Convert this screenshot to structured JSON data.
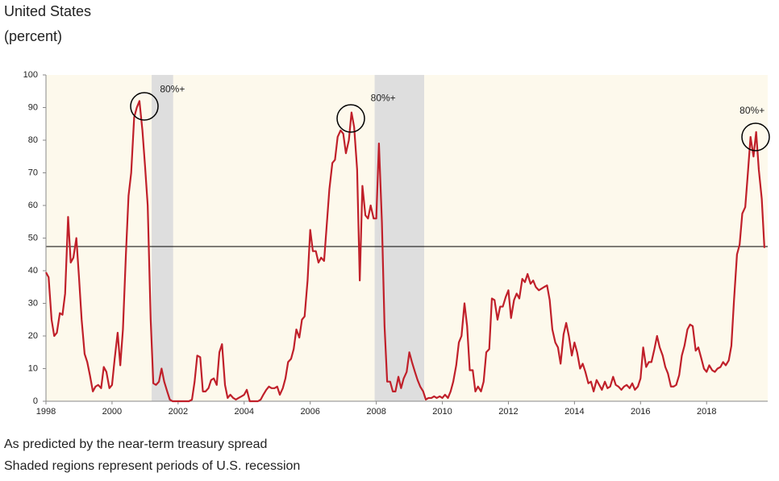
{
  "chart_data": {
    "type": "line",
    "title": "United States",
    "subtitle": "(percent)",
    "notes": [
      "As predicted by the near-term treasury spread",
      "Shaded regions represent periods of U.S. recession"
    ],
    "color": "#c0202a",
    "background": "#fdf9ec",
    "recession_color": "#dedede",
    "recessions": [
      [
        2001.2,
        2001.85
      ],
      [
        2007.95,
        2009.45
      ]
    ],
    "threshold": 47.4,
    "annotations": [
      {
        "text": "80%+",
        "x": 2001.45,
        "y": 95.5
      },
      {
        "text": "80%+",
        "x": 2007.83,
        "y": 92.8
      },
      {
        "text": "80%+",
        "x": 2019.0,
        "y": 88.9
      }
    ],
    "xlim": [
      1998,
      2019.85
    ],
    "xticks": [
      1998,
      2000,
      2002,
      2004,
      2006,
      2008,
      2010,
      2012,
      2014,
      2016,
      2018
    ],
    "ylim": [
      0,
      100
    ],
    "yticks": [
      0,
      10,
      20,
      30,
      40,
      50,
      60,
      70,
      80,
      90,
      100
    ],
    "x": [
      1998,
      1998.08,
      1998.17,
      1998.25,
      1998.33,
      1998.42,
      1998.5,
      1998.58,
      1998.67,
      1998.75,
      1998.83,
      1998.92,
      1999,
      1999.08,
      1999.17,
      1999.25,
      1999.33,
      1999.42,
      1999.5,
      1999.58,
      1999.67,
      1999.75,
      1999.83,
      1999.92,
      2000,
      2000.08,
      2000.17,
      2000.25,
      2000.33,
      2000.42,
      2000.5,
      2000.58,
      2000.67,
      2000.75,
      2000.83,
      2000.92,
      2001,
      2001.08,
      2001.17,
      2001.25,
      2001.33,
      2001.42,
      2001.5,
      2001.58,
      2001.67,
      2001.75,
      2001.83,
      2001.92,
      2002,
      2002.08,
      2002.17,
      2002.25,
      2002.33,
      2002.42,
      2002.5,
      2002.58,
      2002.67,
      2002.75,
      2002.83,
      2002.92,
      2003,
      2003.08,
      2003.17,
      2003.25,
      2003.33,
      2003.42,
      2003.5,
      2003.58,
      2003.67,
      2003.75,
      2003.83,
      2003.92,
      2004,
      2004.08,
      2004.17,
      2004.25,
      2004.33,
      2004.42,
      2004.5,
      2004.58,
      2004.67,
      2004.75,
      2004.83,
      2004.92,
      2005,
      2005.08,
      2005.17,
      2005.25,
      2005.33,
      2005.42,
      2005.5,
      2005.58,
      2005.67,
      2005.75,
      2005.83,
      2005.92,
      2006,
      2006.08,
      2006.17,
      2006.25,
      2006.33,
      2006.42,
      2006.5,
      2006.58,
      2006.67,
      2006.75,
      2006.83,
      2006.92,
      2007,
      2007.08,
      2007.17,
      2007.25,
      2007.33,
      2007.42,
      2007.5,
      2007.58,
      2007.67,
      2007.75,
      2007.83,
      2007.92,
      2008,
      2008.08,
      2008.17,
      2008.25,
      2008.33,
      2008.42,
      2008.5,
      2008.58,
      2008.67,
      2008.75,
      2008.83,
      2008.92,
      2009,
      2009.08,
      2009.17,
      2009.25,
      2009.33,
      2009.42,
      2009.5,
      2009.58,
      2009.67,
      2009.75,
      2009.83,
      2009.92,
      2010,
      2010.08,
      2010.17,
      2010.25,
      2010.33,
      2010.42,
      2010.5,
      2010.58,
      2010.67,
      2010.75,
      2010.83,
      2010.92,
      2011,
      2011.08,
      2011.17,
      2011.25,
      2011.33,
      2011.42,
      2011.5,
      2011.58,
      2011.67,
      2011.75,
      2011.83,
      2011.92,
      2012,
      2012.08,
      2012.17,
      2012.25,
      2012.33,
      2012.42,
      2012.5,
      2012.58,
      2012.67,
      2012.75,
      2012.83,
      2012.92,
      2013,
      2013.08,
      2013.17,
      2013.25,
      2013.33,
      2013.42,
      2013.5,
      2013.58,
      2013.67,
      2013.75,
      2013.83,
      2013.92,
      2014,
      2014.08,
      2014.17,
      2014.25,
      2014.33,
      2014.42,
      2014.5,
      2014.58,
      2014.67,
      2014.75,
      2014.83,
      2014.92,
      2015,
      2015.08,
      2015.17,
      2015.25,
      2015.33,
      2015.42,
      2015.5,
      2015.58,
      2015.67,
      2015.75,
      2015.83,
      2015.92,
      2016,
      2016.08,
      2016.17,
      2016.25,
      2016.33,
      2016.42,
      2016.5,
      2016.58,
      2016.67,
      2016.75,
      2016.83,
      2016.92,
      2017,
      2017.08,
      2017.17,
      2017.25,
      2017.33,
      2017.42,
      2017.5,
      2017.58,
      2017.67,
      2017.75,
      2017.83,
      2017.92,
      2018,
      2018.08,
      2018.17,
      2018.25,
      2018.33,
      2018.42,
      2018.5,
      2018.58,
      2018.67,
      2018.75,
      2018.83,
      2018.92,
      2019,
      2019.08,
      2019.17,
      2019.25,
      2019.33,
      2019.42,
      2019.5,
      2019.58,
      2019.67,
      2019.75
    ],
    "values": [
      39.5,
      38,
      25,
      20,
      21,
      27,
      26.5,
      33,
      56.5,
      42.5,
      44,
      50,
      38,
      25,
      14.5,
      12,
      8,
      3,
      4.5,
      5,
      4,
      10.5,
      9,
      4,
      5,
      13,
      21,
      11,
      22,
      45,
      63,
      70,
      87,
      90,
      92,
      83,
      72,
      60,
      25,
      5.5,
      5,
      6,
      10,
      6,
      3,
      0.5,
      0,
      0,
      0,
      0,
      0,
      0,
      0,
      0.5,
      6,
      14,
      13.5,
      3,
      3,
      4,
      6.5,
      7,
      5,
      15,
      17.5,
      5,
      1,
      2,
      1,
      0.5,
      1,
      1.5,
      2,
      3.5,
      0,
      0,
      0,
      0,
      0.5,
      2,
      3.5,
      4.5,
      4,
      4,
      4.5,
      2,
      4,
      7,
      12,
      13,
      16,
      22,
      19.5,
      25,
      26,
      37,
      52.5,
      46,
      46,
      42.5,
      44,
      43,
      54,
      65,
      73,
      74,
      81,
      83,
      82,
      76,
      80,
      88.5,
      84,
      71,
      37,
      66,
      57,
      56,
      60,
      56,
      56,
      79,
      55,
      23,
      6,
      6,
      3,
      3,
      7.5,
      4,
      7,
      9,
      15,
      12,
      9,
      6.5,
      4.5,
      3,
      0.5,
      1,
      1,
      1.5,
      1,
      1.5,
      1,
      2,
      1,
      3,
      6,
      11,
      18,
      20,
      30,
      23,
      9.5,
      9.5,
      3,
      4.5,
      3,
      6,
      15,
      16,
      31.5,
      31,
      25,
      29,
      29,
      32,
      34,
      25.5,
      31,
      33,
      31.5,
      37.5,
      36.5,
      39,
      36,
      37,
      35,
      34,
      34.5,
      35,
      35.5,
      31,
      22,
      18,
      16.5,
      11.5,
      20.5,
      24,
      20,
      14,
      18,
      15,
      10,
      11.5,
      9,
      5.5,
      6,
      3,
      6.5,
      5,
      3.5,
      6,
      4,
      4.5,
      7.5,
      5,
      4.5,
      3.5,
      4.5,
      5,
      4,
      5.5,
      3.5,
      4.5,
      7,
      16.5,
      10.5,
      12,
      12,
      16,
      20,
      16.5,
      14,
      10.5,
      8.5,
      4.5,
      4.5,
      5,
      8,
      14,
      17,
      22,
      23.5,
      23,
      15.5,
      16.5,
      13.5,
      10,
      9,
      11,
      9.5,
      9,
      10,
      10.5,
      12,
      11,
      12.5,
      17,
      31,
      45,
      48,
      57.5,
      59.5,
      70,
      81,
      75,
      82.5,
      71,
      62,
      47
    ]
  }
}
